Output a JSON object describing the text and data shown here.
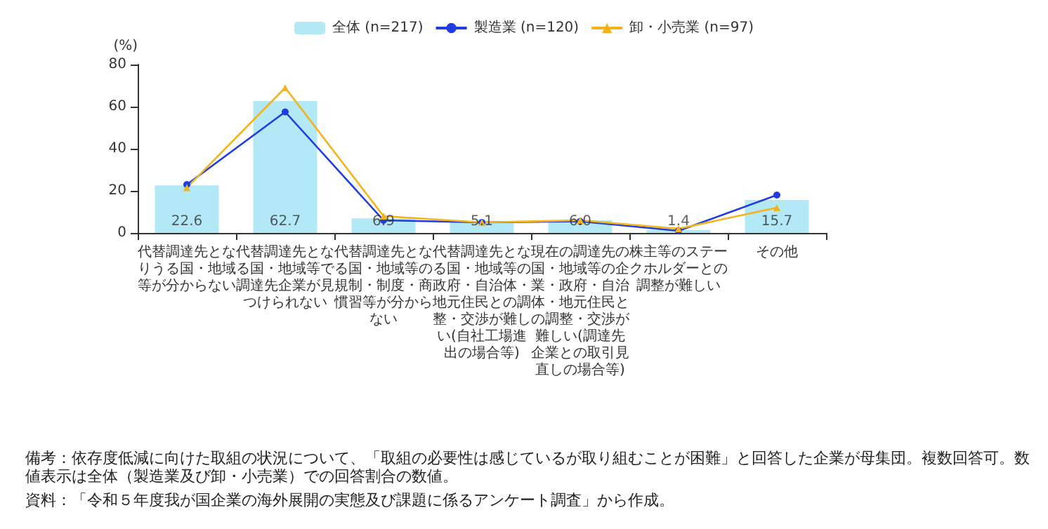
{
  "chart_data": {
    "type": "bar",
    "ylabel": "(%)",
    "categories": [
      "代替調達先となりうる国・地域等が分からない",
      "代替調達先となる国・地域等で調達先企業が見つけられない",
      "代替調達先となる国・地域等の規制・制度・商慣習等が分からない",
      "代替調達先となる国・地域等の政府・自治体・地元住民との調整・交渉が難しい(自社工場進出の場合等)",
      "現在の調達先の国・地域等の企業・政府・自治体・地元住民との調整・交渉が難しい(調達先企業との取引見直しの場合等)",
      "株主等のステークホルダーとの調整が難しい",
      "その他"
    ],
    "series": [
      {
        "name": "全体 (n=217)",
        "color": "#b3e8f6",
        "values": [
          22.6,
          62.7,
          6.9,
          5.1,
          6.0,
          1.4,
          15.7
        ],
        "value_labels": [
          "22.6",
          "62.7",
          "6.9",
          "5.1",
          "6.0",
          "1.4",
          "15.7"
        ]
      },
      {
        "name": "製造業 (n=120)",
        "type": "line",
        "color": "#1f3de0",
        "marker": "circle",
        "values": [
          23,
          57.5,
          6,
          5,
          5.5,
          1,
          18
        ]
      },
      {
        "name": "卸・小売業 (n=97)",
        "type": "line",
        "color": "#f5b31a",
        "marker": "triangle",
        "values": [
          21.5,
          69,
          8,
          5,
          6,
          2,
          12
        ]
      }
    ],
    "ylim": [
      0,
      80
    ],
    "yticks": [
      0,
      20,
      40,
      60,
      80
    ],
    "grid": false,
    "legend": "top",
    "annotations": [
      "備考：依存度低減に向けた取組の状況について、「取組の必要性は感じているが取り組むことが困難」と回答した企業が母集団。複数回答可。数値表示は全体（製造業及び卸・小売業）での回答割合の数値。",
      "資料：「令和５年度我が国企業の海外展開の実態及び課題に係るアンケート調査」から作成。"
    ]
  }
}
